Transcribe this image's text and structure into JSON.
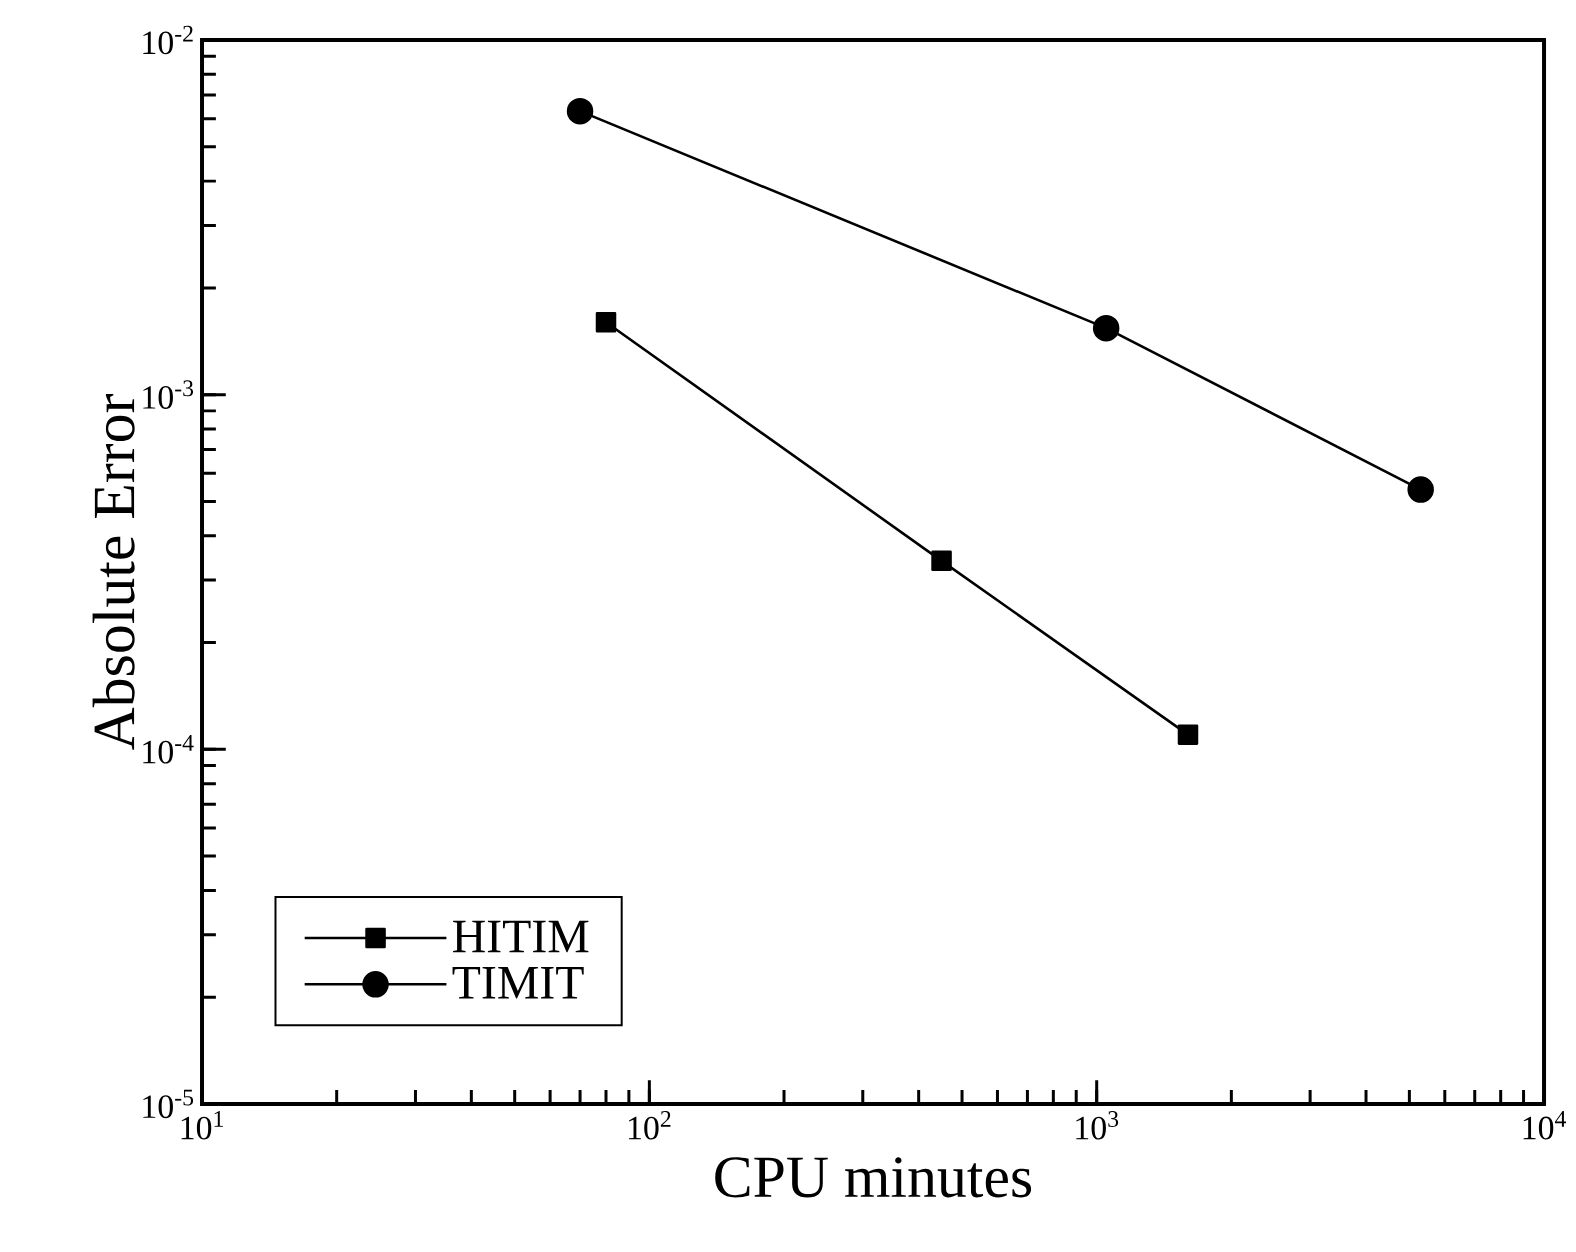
{
  "chart_data": {
    "type": "line",
    "xlabel": "CPU minutes",
    "ylabel": "Absolute Error",
    "log": "xy",
    "legend": "bottom left",
    "grid": false,
    "xlim": [
      10,
      10000
    ],
    "ylim": [
      1e-05,
      0.01
    ],
    "xticks": [
      {
        "value": 10,
        "label": "10$^{1}$"
      },
      {
        "value": 100,
        "label": "10$^{2}$"
      },
      {
        "value": 1000,
        "label": "10$^{3}$"
      },
      {
        "value": 10000,
        "label": "10$^{4}$"
      }
    ],
    "yticks": [
      {
        "value": 1e-05,
        "label": "10$^{-5}$"
      },
      {
        "value": 0.0001,
        "label": "10$^{-4}$"
      },
      {
        "value": 0.001,
        "label": "10$^{-3}$"
      },
      {
        "value": 0.01,
        "label": "10$^{-2}$"
      }
    ],
    "series": [
      {
        "name": "HITIM",
        "color": "#000000",
        "marker": "square",
        "x": [
          80,
          450,
          1600
        ],
        "values": [
          0.0016,
          0.00034,
          0.00011
        ]
      },
      {
        "name": "TIMIT",
        "color": "#000000",
        "marker": "circle",
        "x": [
          70,
          1050,
          5300
        ],
        "values": [
          0.0063,
          0.00154,
          0.00054
        ]
      }
    ]
  }
}
